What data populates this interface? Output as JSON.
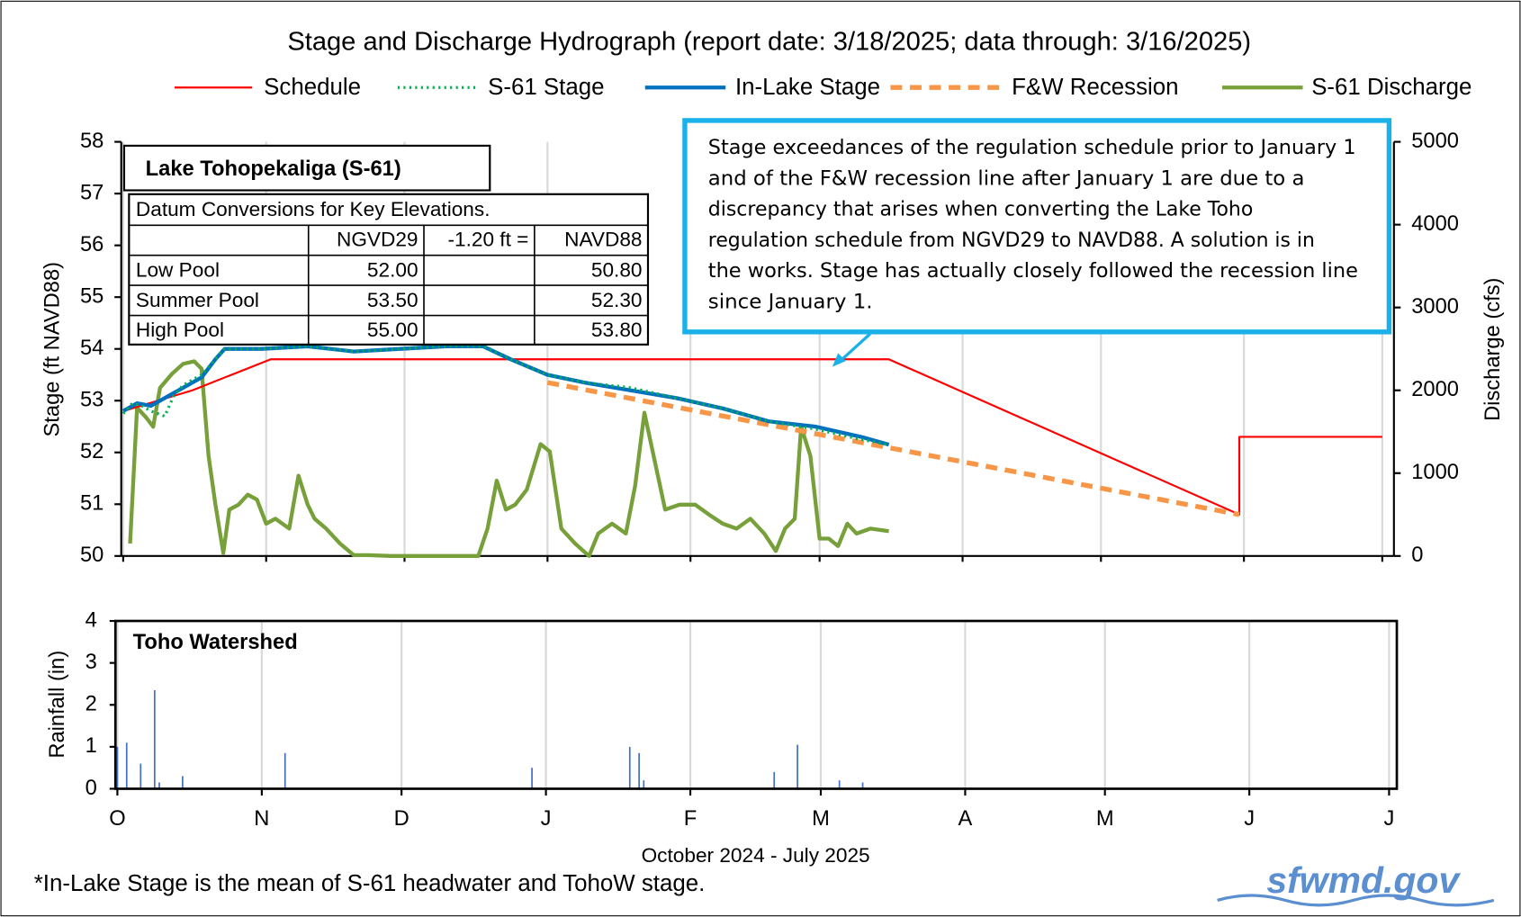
{
  "chart_data": [
    {
      "type": "line",
      "title": "Stage and Discharge Hydrograph  (report date: 3/18/2025; data through:  3/16/2025)",
      "subtitle": "Lake Tohopekaliga  (S-61)",
      "ylabel": "Stage (ft NAVD88)",
      "y2label": "Discharge (cfs)",
      "xlim": [
        0,
        273
      ],
      "xticks": [
        0,
        31,
        61,
        92,
        123,
        151,
        182,
        212,
        243,
        273
      ],
      "ylim": [
        50,
        58
      ],
      "yticks": [
        50,
        51,
        52,
        53,
        54,
        55,
        56,
        57,
        58
      ],
      "y2lim": [
        0,
        5000
      ],
      "y2ticks": [
        0,
        1000,
        2000,
        3000,
        4000,
        5000
      ],
      "grid": "x",
      "series": [
        {
          "name": "Schedule",
          "color": "#ff0000",
          "dash": "solid",
          "width": 2,
          "x": [
            0,
            15,
            32,
            166,
            242,
            242,
            273
          ],
          "values": [
            52.8,
            53.2,
            53.8,
            53.8,
            50.8,
            52.3,
            52.3
          ]
        },
        {
          "name": "S-61 Stage",
          "color": "#00b050",
          "dash": "dotted",
          "width": 3,
          "x": [
            0,
            2,
            4,
            6,
            9,
            11,
            13,
            15,
            17,
            20,
            22,
            30,
            40,
            50,
            60,
            70,
            78,
            84,
            92,
            100,
            110,
            120,
            130,
            140,
            150,
            160,
            166
          ],
          "values": [
            52.75,
            52.95,
            52.9,
            52.8,
            52.7,
            53.1,
            53.3,
            53.4,
            53.5,
            53.8,
            54.0,
            54.0,
            54.05,
            53.95,
            54.0,
            54.05,
            54.05,
            53.8,
            53.5,
            53.35,
            53.25,
            53.05,
            52.85,
            52.6,
            52.45,
            52.25,
            52.15
          ]
        },
        {
          "name": "In-Lake Stage",
          "color": "#0070c0",
          "dash": "solid",
          "width": 4,
          "x": [
            0,
            3,
            6,
            10,
            14,
            17,
            20,
            22,
            30,
            40,
            50,
            60,
            70,
            78,
            84,
            92,
            100,
            110,
            120,
            130,
            140,
            150,
            160,
            166
          ],
          "values": [
            52.8,
            52.95,
            52.9,
            53.1,
            53.3,
            53.45,
            53.8,
            54.0,
            54.0,
            54.05,
            53.95,
            54.0,
            54.05,
            54.05,
            53.8,
            53.5,
            53.35,
            53.2,
            53.05,
            52.85,
            52.6,
            52.5,
            52.3,
            52.15
          ]
        },
        {
          "name": "F&W Recession",
          "color": "#f79646",
          "dash": "dashed",
          "width": 5,
          "x": [
            92,
            242
          ],
          "values": [
            53.35,
            50.8
          ]
        },
        {
          "name": "S-61 Discharge",
          "color": "#77a03a",
          "dash": "solid",
          "width": 4,
          "axis": "y2",
          "x": [
            1.5,
            3,
            5,
            6.5,
            8,
            10.6,
            13,
            15.4,
            17,
            18.5,
            20,
            21.7,
            23,
            25,
            27,
            29,
            31,
            33,
            36,
            38,
            40,
            41.5,
            44,
            47,
            50,
            53,
            58,
            77,
            79,
            81,
            83,
            85,
            87.5,
            90.5,
            92.5,
            95,
            98,
            101,
            103,
            106,
            109,
            111,
            113,
            115,
            117.5,
            120.6,
            124,
            127,
            130,
            133,
            136,
            139,
            141.5,
            143.5,
            145.6,
            147,
            149,
            151,
            153,
            155,
            157,
            159,
            162,
            166
          ],
          "values": [
            150,
            1790,
            1670,
            1560,
            2030,
            2200,
            2320,
            2350,
            2260,
            1210,
            620,
            35,
            560,
            620,
            740,
            680,
            390,
            450,
            330,
            970,
            620,
            450,
            330,
            150,
            10,
            10,
            0,
            0,
            330,
            910,
            560,
            620,
            800,
            1350,
            1260,
            330,
            150,
            0,
            270,
            390,
            270,
            850,
            1730,
            1210,
            560,
            620,
            620,
            500,
            390,
            330,
            450,
            270,
            60,
            330,
            450,
            1560,
            1210,
            210,
            210,
            120,
            390,
            270,
            330,
            300
          ]
        }
      ],
      "table": {
        "title": "Datum Conversions for Key Elevations.",
        "header": [
          "NGVD29",
          "-1.20 ft =",
          "NAVD88"
        ],
        "rows": [
          {
            "name": "Low Pool",
            "values": [
              "52.00",
              "50.80"
            ]
          },
          {
            "name": "Summer Pool",
            "values": [
              "53.50",
              "52.30"
            ]
          },
          {
            "name": "High Pool",
            "values": [
              "55.00",
              "53.80"
            ]
          }
        ]
      },
      "annotation": [
        "Stage exceedances of the regulation schedule prior to January 1",
        "and of the F&W recession line after January 1 are due to a",
        "discrepancy that arises when converting the Lake Toho",
        "regulation schedule from NGVD29 to NAVD88. A solution is in",
        "the works. Stage has actually closely followed the recession line",
        "since January 1."
      ]
    },
    {
      "type": "bar",
      "title": "Toho Watershed",
      "ylabel": "Rainfall (in)",
      "xlabel": "October 2024 - July 2025",
      "color": "#4472c4",
      "xlim": [
        0,
        273
      ],
      "xticks": [
        {
          "value": 0,
          "label": "O"
        },
        {
          "value": 31,
          "label": "N"
        },
        {
          "value": 61,
          "label": "D"
        },
        {
          "value": 92,
          "label": "J"
        },
        {
          "value": 123,
          "label": "F"
        },
        {
          "value": 151,
          "label": "M"
        },
        {
          "value": 182,
          "label": "A"
        },
        {
          "value": 212,
          "label": "M"
        },
        {
          "value": 243,
          "label": "J"
        },
        {
          "value": 273,
          "label": "J"
        }
      ],
      "ylim": [
        0,
        4
      ],
      "yticks": [
        0,
        1,
        2,
        3,
        4
      ],
      "grid": "x",
      "x": [
        0,
        2,
        5,
        8,
        9,
        14,
        36,
        89,
        110,
        112,
        113,
        141,
        146,
        155,
        160
      ],
      "values": [
        1.0,
        1.1,
        0.6,
        2.35,
        0.15,
        0.3,
        0.85,
        0.5,
        1.0,
        0.85,
        0.2,
        0.4,
        1.05,
        0.2,
        0.15
      ]
    }
  ],
  "footnote": "*In-Lake Stage is the mean of S-61 headwater and TohoW stage.",
  "logo": "sfwmd.gov"
}
